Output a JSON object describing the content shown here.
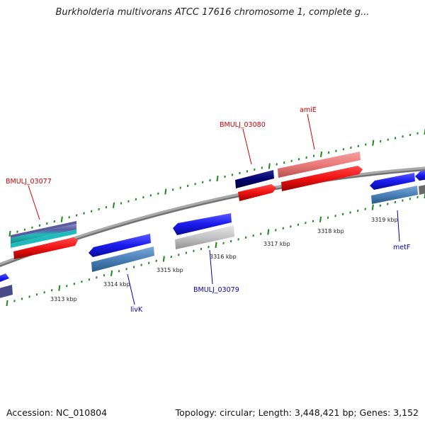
{
  "title": "Burkholderia multivorans ATCC 17616 chromosome 1, complete g...",
  "footer": {
    "accession": "Accession: NC_010804",
    "topology": "Topology: circular; Length: 3,448,421 bp; Genes: 3,152"
  },
  "colors": {
    "background": "#ffffff",
    "backbone": "#808080",
    "tick": "#1a8a1a",
    "forward_label": "#cc0000",
    "reverse_label": "#0000aa"
  },
  "axis": {
    "unit": "kbp",
    "ticks": [
      {
        "pos": 3313,
        "label": "3313 kbp"
      },
      {
        "pos": 3314,
        "label": "3314 kbp"
      },
      {
        "pos": 3315,
        "label": "3315 kbp"
      },
      {
        "pos": 3316,
        "label": "3316 kbp"
      },
      {
        "pos": 3317,
        "label": "3317 kbp"
      },
      {
        "pos": 3318,
        "label": "3318 kbp"
      },
      {
        "pos": 3319,
        "label": "3319 kbp"
      }
    ]
  },
  "genes": [
    {
      "name": "BMULJ_03077",
      "strand": "forward",
      "colors": [
        "#ee1111",
        "#22bbbb",
        "#6a6aa8"
      ]
    },
    {
      "name": "BMULJ_03080",
      "strand": "forward",
      "colors": [
        "#ee1111",
        "#000070"
      ]
    },
    {
      "name": "amiE",
      "strand": "forward",
      "colors": [
        "#ee1111",
        "#ee7a7a"
      ]
    },
    {
      "name": "livK",
      "strand": "reverse",
      "colors": [
        "#1a1aee",
        "#4a80b8"
      ]
    },
    {
      "name": "BMULJ_03079",
      "strand": "reverse",
      "colors": [
        "#1a1aee",
        "#c4c4c4"
      ]
    },
    {
      "name": "metF",
      "strand": "reverse",
      "colors": [
        "#1a1aee",
        "#4a80b8"
      ]
    }
  ]
}
